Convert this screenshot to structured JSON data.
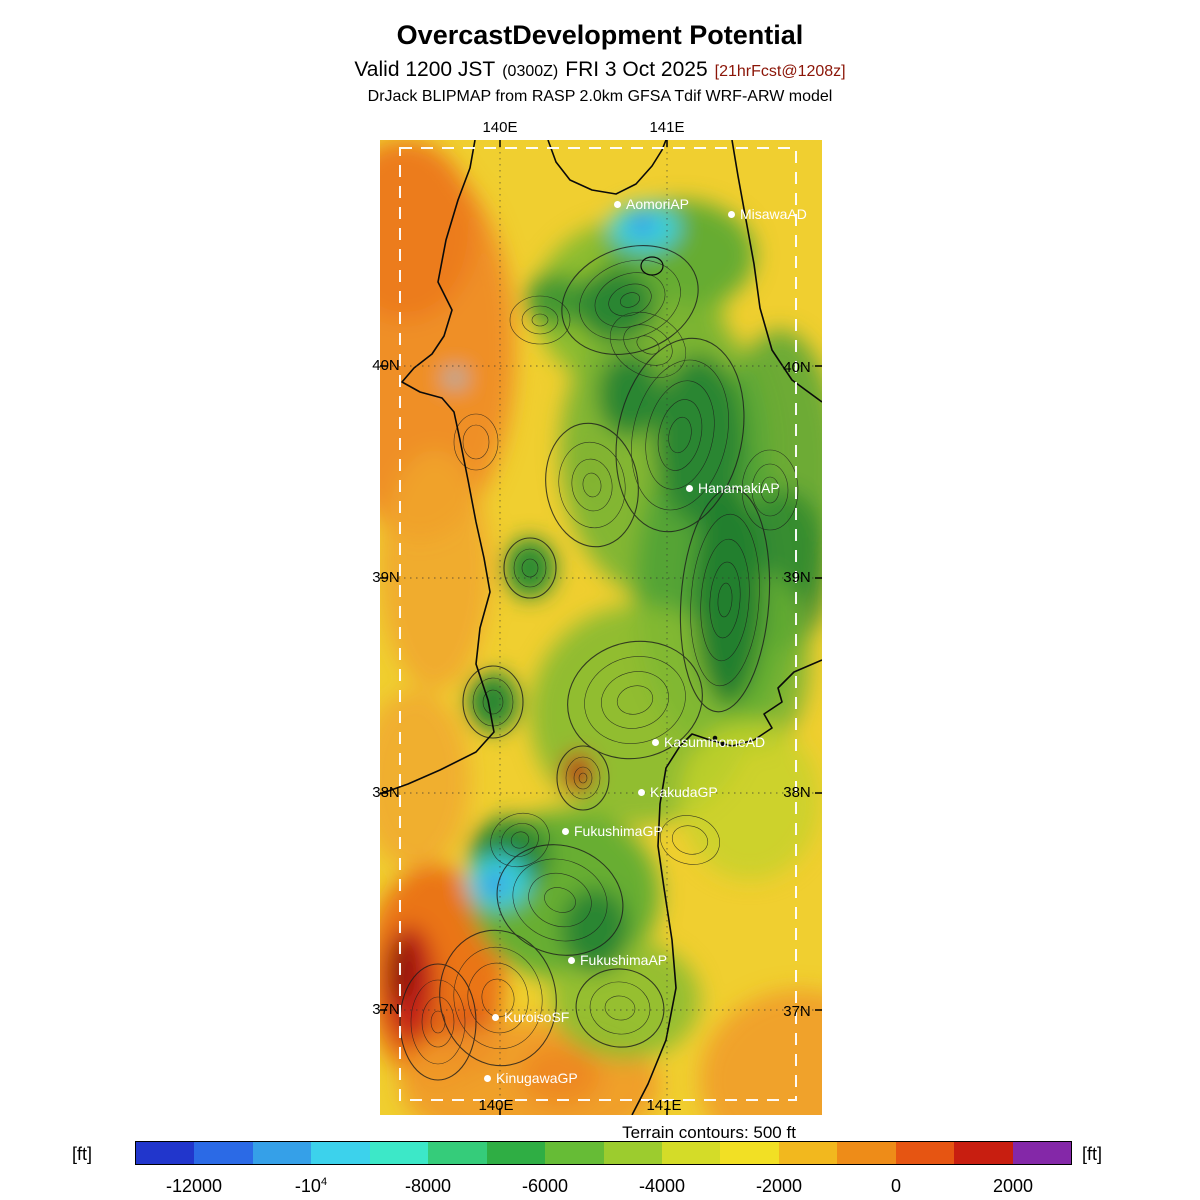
{
  "header": {
    "title": "OvercastDevelopment Potential",
    "valid_line": {
      "prefix": "Valid 1200 JST",
      "zulu": "(0300Z)",
      "date": "FRI 3 Oct 2025",
      "fcst": "[21hrFcst@1208z]"
    },
    "model_line": "DrJack BLIPMAP from RASP 2.0km GFSA Tdif WRF-ARW model"
  },
  "map": {
    "grid": {
      "lon_top": [
        "140E",
        "141E"
      ],
      "lon_bottom": [
        "140E",
        "141E"
      ],
      "lat_left": [
        "40N",
        "39N",
        "38N",
        "37N"
      ],
      "lat_right": [
        "40N",
        "39N",
        "38N",
        "37N"
      ]
    },
    "stations": [
      {
        "name": "AomoriAP"
      },
      {
        "name": "MisawaAD"
      },
      {
        "name": "HanamakiAP"
      },
      {
        "name": "KasuminomeAD"
      },
      {
        "name": "KakudaGP"
      },
      {
        "name": "FukushimaGP"
      },
      {
        "name": "FukushimaAP"
      },
      {
        "name": "KuroisoSF"
      },
      {
        "name": "KinugawaGP"
      }
    ],
    "terrain_note": "Terrain contours: 500 ft"
  },
  "colorbar": {
    "unit_left": "[ft]",
    "unit_right": "[ft]",
    "ticks": [
      {
        "label": "-12000"
      },
      {
        "label": "-10",
        "sup": "4"
      },
      {
        "label": "-8000"
      },
      {
        "label": "-6000"
      },
      {
        "label": "-4000"
      },
      {
        "label": "-2000"
      },
      {
        "label": "0"
      },
      {
        "label": "2000"
      }
    ],
    "colors": [
      "#2136cc",
      "#2b6ae6",
      "#35a0e8",
      "#3cd2ec",
      "#3ce8c8",
      "#35cc7a",
      "#2fae44",
      "#66bc36",
      "#9ccc2e",
      "#d4dc28",
      "#f2e024",
      "#f2b81e",
      "#ee8c18",
      "#e65512",
      "#c81e10",
      "#8428a8"
    ]
  }
}
